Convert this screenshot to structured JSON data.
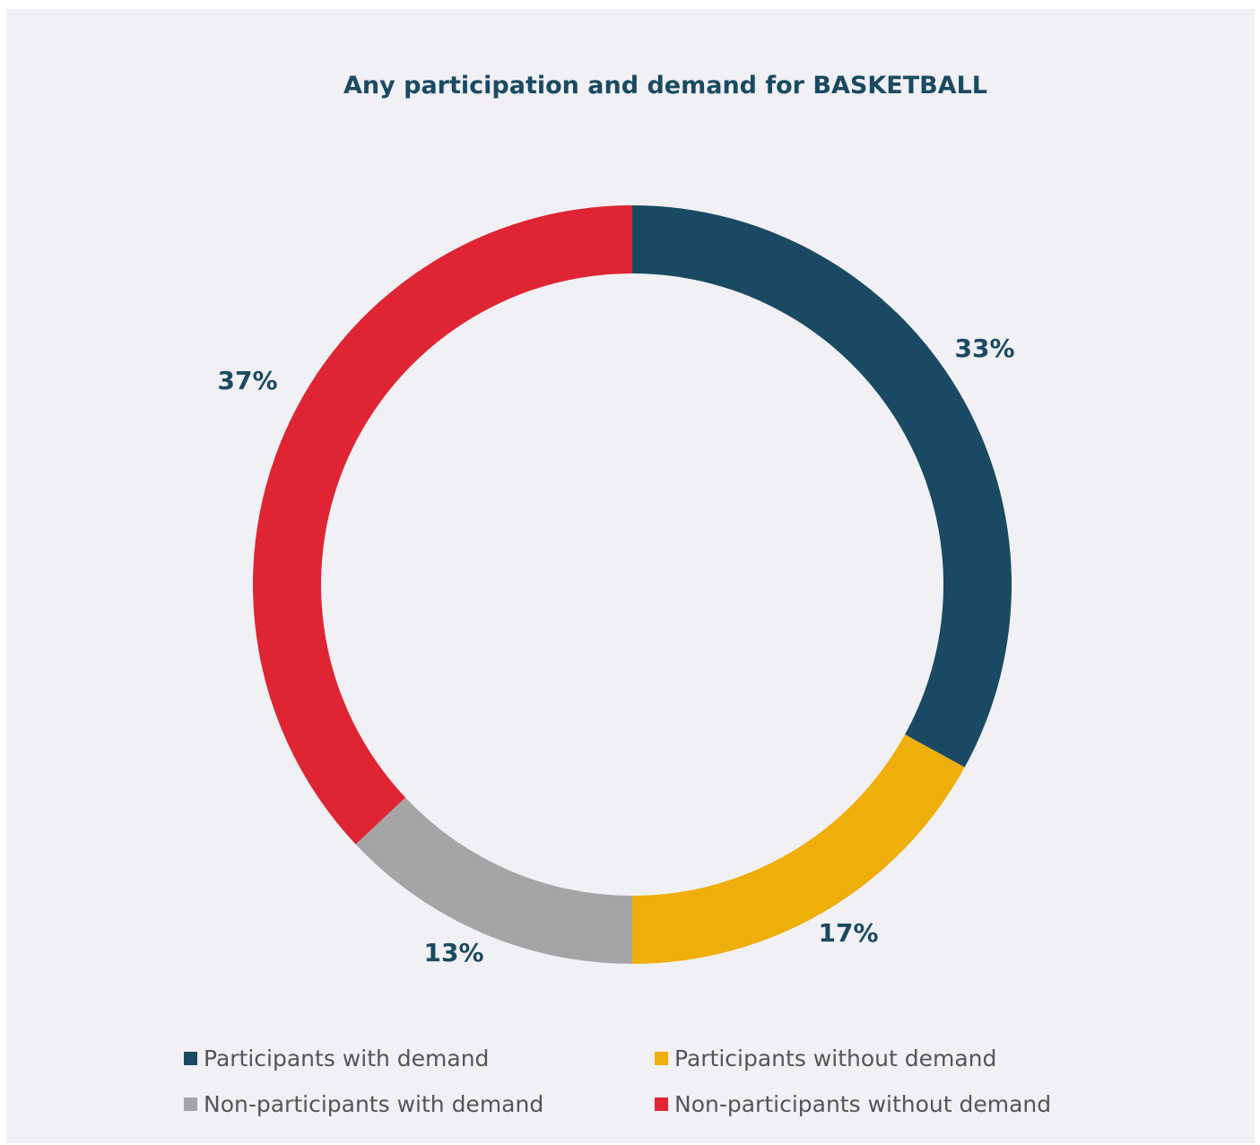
{
  "chart_data": {
    "type": "pie",
    "title": "Any participation and demand for BASKETBALL",
    "slices": [
      {
        "name": "Participants with demand",
        "value": 33,
        "label": "33%",
        "color": "#1a4a63"
      },
      {
        "name": "Participants without demand",
        "value": 17,
        "label": "17%",
        "color": "#efaf0b"
      },
      {
        "name": "Non-participants with demand",
        "value": 13,
        "label": "13%",
        "color": "#a6a5a6"
      },
      {
        "name": "Non-participants without demand",
        "value": 37,
        "label": "37%",
        "color": "#df2433"
      }
    ],
    "legend_position": "bottom"
  }
}
